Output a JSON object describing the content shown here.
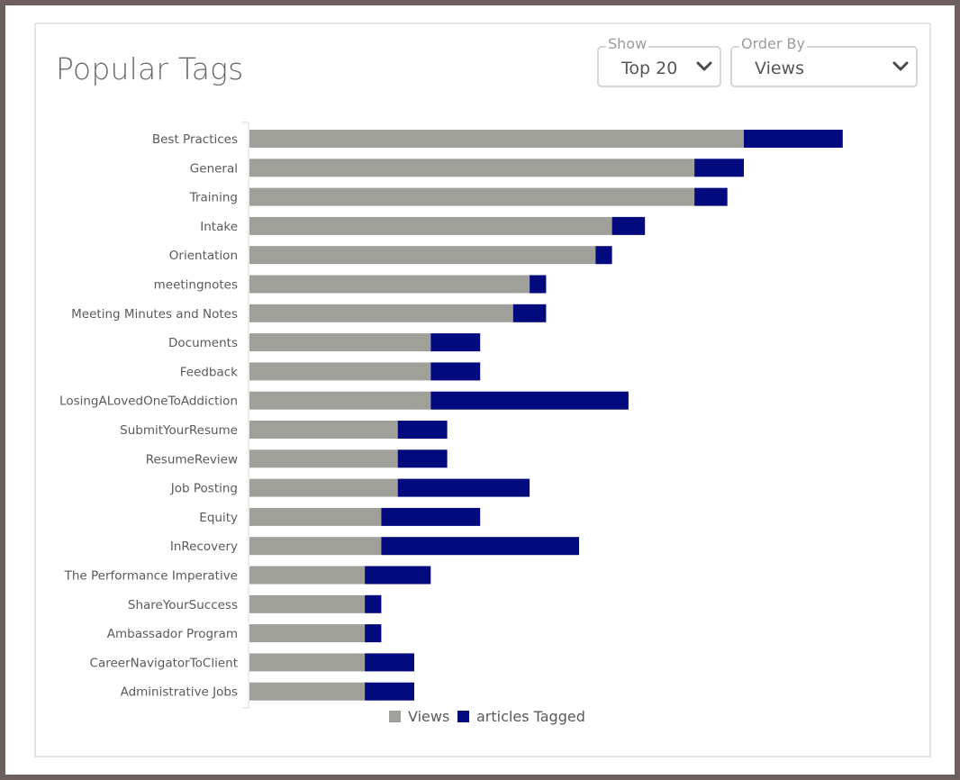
{
  "title": "Popular Tags",
  "controls": {
    "show": {
      "label": "Show",
      "value": "Top 20"
    },
    "order_by": {
      "label": "Order By",
      "value": "Views"
    }
  },
  "colors": {
    "views": "#a0a09a",
    "articles": "#030a7d",
    "label_text": "#5a5a5a",
    "axis": "#d8d8d8"
  },
  "chart_data": {
    "type": "bar",
    "orientation": "horizontal",
    "stacked": true,
    "title": "Popular Tags",
    "categories": [
      "Best Practices",
      "General",
      "Training",
      "Intake",
      "Orientation",
      "meetingnotes",
      "Meeting Minutes and Notes",
      "Documents",
      "Feedback",
      "LosingALovedOneToAddiction",
      "SubmitYourResume",
      "ResumeReview",
      "Job Posting",
      "Equity",
      "InRecovery",
      "The Performance Imperative",
      "ShareYourSuccess",
      "Ambassador Program",
      "CareerNavigatorToClient",
      "Administrative Jobs"
    ],
    "series": [
      {
        "name": "Views",
        "values": [
          30,
          27,
          27,
          22,
          21,
          17,
          16,
          11,
          11,
          11,
          9,
          9,
          9,
          8,
          8,
          7,
          7,
          7,
          7,
          7
        ]
      },
      {
        "name": "articles Tagged",
        "values": [
          6,
          3,
          2,
          2,
          1,
          1,
          2,
          3,
          3,
          12,
          3,
          3,
          8,
          6,
          12,
          4,
          1,
          1,
          3,
          3
        ]
      }
    ],
    "xlim": [
      0,
      36
    ],
    "grid": false,
    "legend_position": "bottom"
  }
}
